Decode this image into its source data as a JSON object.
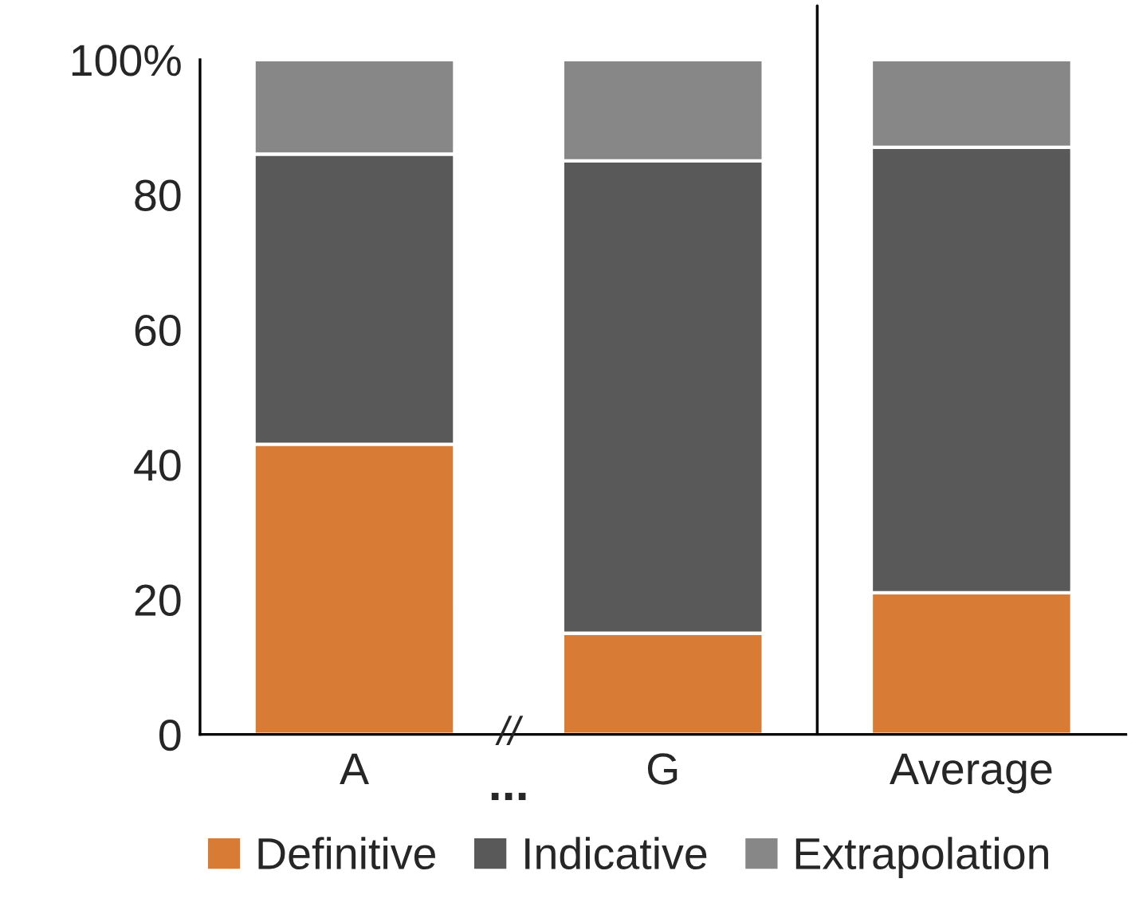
{
  "chart_data": {
    "type": "bar",
    "stacked": true,
    "categories": [
      "A",
      "G",
      "Average"
    ],
    "series": [
      {
        "name": "Definitive",
        "color": "#d77b35",
        "values": [
          43,
          15,
          21
        ]
      },
      {
        "name": "Indicative",
        "color": "#595959",
        "values": [
          43,
          70,
          66
        ]
      },
      {
        "name": "Extrapolation",
        "color": "#878787",
        "values": [
          14,
          15,
          13
        ]
      }
    ],
    "ylim": [
      0,
      100
    ],
    "yticks": [
      0,
      20,
      40,
      60,
      80,
      {
        "value": 100,
        "label": "100%"
      }
    ],
    "annotations": [
      "...",
      "//"
    ],
    "legend": "bottom",
    "grid": false
  }
}
